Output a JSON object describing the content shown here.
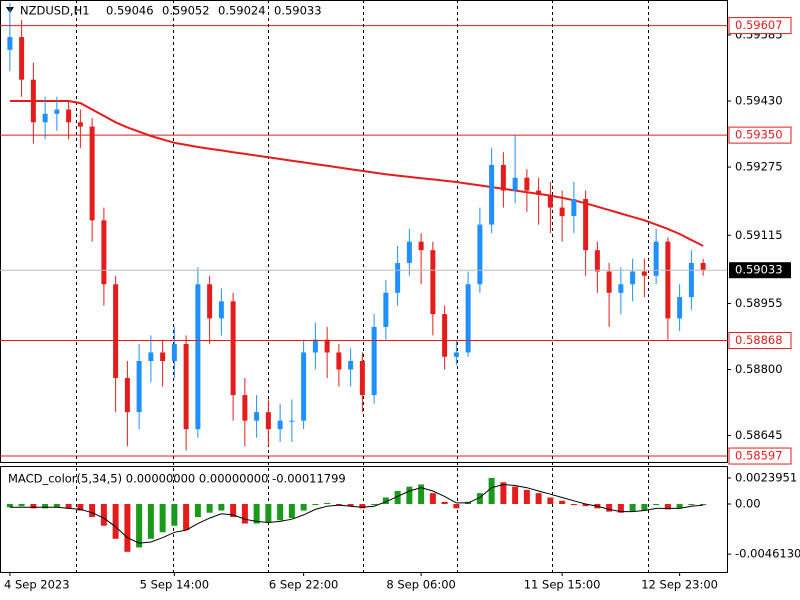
{
  "chart_data": {
    "type": "candlestick",
    "symbol": "NZDUSD,H1",
    "ohlc": [
      0.59046,
      0.59052,
      0.59024,
      0.59033
    ],
    "categories": [
      "4 Sep 2023",
      null,
      null,
      null,
      null,
      null,
      null,
      null,
      null,
      null,
      null,
      null,
      null,
      null,
      "5 Sep 14:00",
      null,
      null,
      null,
      null,
      null,
      null,
      null,
      null,
      null,
      null,
      "6 Sep 22:00",
      null,
      null,
      null,
      null,
      null,
      null,
      null,
      null,
      null,
      "8 Sep 06:00",
      null,
      null,
      null,
      null,
      null,
      null,
      null,
      null,
      null,
      null,
      null,
      "11 Sep 15:00",
      null,
      null,
      null,
      null,
      null,
      null,
      null,
      null,
      null,
      "12 Sep 23:00",
      null,
      null
    ],
    "open": [
      0.5955,
      0.5958,
      0.5948,
      0.5938,
      0.594,
      0.5941,
      0.5938,
      0.5937,
      0.5915,
      0.59,
      0.5878,
      0.587,
      0.5882,
      0.5884,
      0.5882,
      0.5886,
      0.5866,
      0.59,
      0.5892,
      0.5896,
      0.5874,
      0.5868,
      0.587,
      0.5866,
      0.5868,
      0.5868,
      0.5884,
      0.5887,
      0.5884,
      0.588,
      0.5882,
      0.5874,
      0.589,
      0.5898,
      0.5905,
      0.591,
      0.5908,
      0.5893,
      0.5883,
      0.5884,
      0.59,
      0.5914,
      0.5928,
      0.5922,
      0.5925,
      0.5922,
      0.5921,
      0.5918,
      0.5916,
      0.592,
      0.5908,
      0.5903,
      0.5898,
      0.59,
      0.5903,
      0.5902,
      0.591,
      0.5892,
      0.5897,
      0.5905
    ],
    "high": [
      0.5966,
      0.5962,
      0.5952,
      0.5944,
      0.5944,
      0.5943,
      0.5941,
      0.5939,
      0.5918,
      0.5902,
      0.5882,
      0.5886,
      0.5888,
      0.5887,
      0.589,
      0.5888,
      0.5904,
      0.5902,
      0.5899,
      0.5898,
      0.5878,
      0.5874,
      0.5873,
      0.5872,
      0.5873,
      0.5887,
      0.5891,
      0.589,
      0.5886,
      0.5885,
      0.5884,
      0.5893,
      0.5901,
      0.5909,
      0.5913,
      0.5912,
      0.591,
      0.5895,
      0.5887,
      0.5903,
      0.5918,
      0.5932,
      0.5931,
      0.5935,
      0.5927,
      0.5925,
      0.5924,
      0.5922,
      0.5924,
      0.5922,
      0.591,
      0.5905,
      0.5904,
      0.5906,
      0.5906,
      0.5913,
      0.5911,
      0.59,
      0.5908,
      0.5906
    ],
    "low": [
      0.595,
      0.5944,
      0.5933,
      0.5934,
      0.5936,
      0.5934,
      0.5932,
      0.591,
      0.5895,
      0.587,
      0.5862,
      0.5866,
      0.5877,
      0.5876,
      0.5878,
      0.5861,
      0.5864,
      0.5886,
      0.5888,
      0.5868,
      0.5862,
      0.5864,
      0.5862,
      0.5863,
      0.5863,
      0.5866,
      0.588,
      0.5878,
      0.5876,
      0.5876,
      0.587,
      0.5872,
      0.5887,
      0.5895,
      0.5902,
      0.59,
      0.5888,
      0.588,
      0.5881,
      0.5883,
      0.5898,
      0.5912,
      0.5918,
      0.5919,
      0.5917,
      0.5914,
      0.5912,
      0.591,
      0.5912,
      0.5902,
      0.5898,
      0.589,
      0.5893,
      0.5896,
      0.5897,
      0.59,
      0.5887,
      0.5889,
      0.5894,
      0.5902
    ],
    "close": [
      0.5958,
      0.5948,
      0.5938,
      0.594,
      0.5941,
      0.5938,
      0.5937,
      0.5915,
      0.59,
      0.5878,
      0.587,
      0.5882,
      0.5884,
      0.5882,
      0.5886,
      0.5866,
      0.59,
      0.5892,
      0.5896,
      0.5874,
      0.5868,
      0.587,
      0.5866,
      0.5868,
      0.5868,
      0.5884,
      0.5887,
      0.5884,
      0.588,
      0.5882,
      0.5874,
      0.589,
      0.5898,
      0.5905,
      0.591,
      0.5908,
      0.5893,
      0.5883,
      0.5884,
      0.59,
      0.5914,
      0.5928,
      0.5922,
      0.5925,
      0.5922,
      0.5921,
      0.5918,
      0.5916,
      0.592,
      0.5908,
      0.5903,
      0.5898,
      0.59,
      0.5903,
      0.5902,
      0.591,
      0.5892,
      0.5897,
      0.5905,
      0.59033
    ],
    "up_color": "#1e90ff",
    "down_color": "#e51c1c",
    "ma": {
      "color": "#e51c1c",
      "values": [
        0.5943,
        0.5943,
        0.5943,
        0.5943,
        0.5943,
        0.5943,
        0.59425,
        0.5941,
        0.59395,
        0.5938,
        0.59368,
        0.59358,
        0.59348,
        0.5934,
        0.59332,
        0.59327,
        0.59322,
        0.59318,
        0.59314,
        0.5931,
        0.59306,
        0.59302,
        0.59298,
        0.59294,
        0.5929,
        0.59286,
        0.59282,
        0.59278,
        0.59274,
        0.5927,
        0.59266,
        0.59262,
        0.59258,
        0.59255,
        0.59252,
        0.59249,
        0.59246,
        0.59243,
        0.5924,
        0.59236,
        0.59232,
        0.59228,
        0.59224,
        0.5922,
        0.59216,
        0.59212,
        0.59208,
        0.59203,
        0.59197,
        0.5919,
        0.59182,
        0.59174,
        0.59166,
        0.59158,
        0.5915,
        0.5914,
        0.5913,
        0.59118,
        0.59104,
        0.5909
      ]
    },
    "ylim": [
      0.58583,
      0.59667
    ],
    "yticks": [
      0.59585,
      {
        "value": 0.5943,
        "label": "0.59430"
      },
      0.59275,
      0.59115,
      0.58955,
      {
        "value": 0.588,
        "label": "0.58800"
      },
      0.58645
    ],
    "levels": [
      0.59607,
      {
        "value": 0.5935,
        "label": "0.59350"
      },
      0.58868,
      0.58597
    ],
    "level_color": "#e51c1c",
    "current_price": 0.59033,
    "macd": {
      "label": "MACD_color(5,34,5) 0.00000000 0.00000000 -0.00011799",
      "up_color": "#1a9a1a",
      "down_color": "#e51c1c",
      "signal_color": "#000000",
      "values": [
        -0.0003,
        -0.0002,
        -0.0004,
        -0.0004,
        -0.0003,
        -0.0004,
        -0.0006,
        -0.0012,
        -0.002,
        -0.0032,
        -0.0044,
        -0.004,
        -0.0032,
        -0.0026,
        -0.002,
        -0.0024,
        -0.0012,
        -0.0008,
        -0.0006,
        -0.0012,
        -0.0018,
        -0.0018,
        -0.0017,
        -0.0015,
        -0.0013,
        -0.0006,
        -0.0001,
        0.0001,
        -0.0001,
        -0.0002,
        -0.0004,
        0,
        0.0006,
        0.0012,
        0.0016,
        0.0018,
        0.001,
        0.0002,
        -0.0004,
        0.0002,
        0.001,
        0.0024,
        0.002,
        0.0016,
        0.0013,
        0.001,
        0.0006,
        0.0003,
        0,
        -0.0002,
        -0.0004,
        -0.0007,
        -0.0008,
        -0.0007,
        -0.0006,
        -0.0001,
        -0.0005,
        -0.0004,
        -0.0001,
        -0.0001
      ],
      "signal": [
        -0.0003,
        -0.0003,
        -0.0003,
        -0.0003,
        -0.0003,
        -0.0004,
        -0.0005,
        -0.0008,
        -0.0013,
        -0.0021,
        -0.0031,
        -0.0036,
        -0.0035,
        -0.0031,
        -0.0026,
        -0.0024,
        -0.0018,
        -0.0013,
        -0.0009,
        -0.001,
        -0.0014,
        -0.0016,
        -0.0017,
        -0.0016,
        -0.0014,
        -0.001,
        -0.0005,
        -0.0002,
        -0.0001,
        -0.0002,
        -0.0003,
        -0.0002,
        0.0002,
        0.0007,
        0.0012,
        0.0015,
        0.0012,
        0.0007,
        0.0001,
        0.0001,
        0.0006,
        0.0015,
        0.0018,
        0.0017,
        0.0015,
        0.0012,
        0.0009,
        0.0006,
        0.0003,
        0,
        -0.0002,
        -0.0005,
        -0.0007,
        -0.0007,
        -0.0006,
        -0.0004,
        -0.0004,
        -0.0004,
        -0.0002,
        -0.0001
      ],
      "y2lim": [
        -0.00626,
        0.0035
      ],
      "y2ticks": [
        0.0023951,
        {
          "value": 0,
          "label": "0.00"
        },
        {
          "value": -0.004613,
          "label": "-0.0046130"
        }
      ]
    }
  }
}
